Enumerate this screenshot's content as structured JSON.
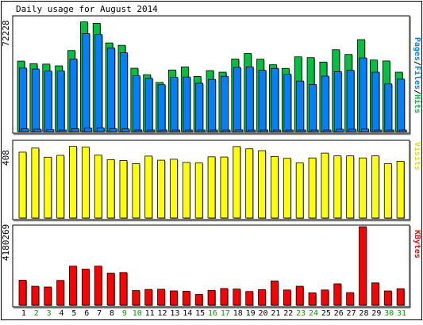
{
  "chart_data": [
    {
      "type": "bar",
      "title": "Daily usage for August 2014",
      "ylabel_max": "72228",
      "side_label_parts": [
        {
          "text": "Pages",
          "color": "#0080ff"
        },
        {
          "text": "/",
          "color": "#000000"
        },
        {
          "text": "Files",
          "color": "#0080ff"
        },
        {
          "text": "/",
          "color": "#000000"
        },
        {
          "text": "Hits",
          "color": "#00c040"
        }
      ],
      "categories": [
        "1",
        "2",
        "3",
        "4",
        "5",
        "6",
        "7",
        "8",
        "9",
        "10",
        "11",
        "12",
        "13",
        "14",
        "15",
        "16",
        "17",
        "18",
        "19",
        "20",
        "21",
        "22",
        "23",
        "24",
        "25",
        "26",
        "27",
        "28",
        "29",
        "30",
        "31"
      ],
      "ylim": [
        0,
        72228
      ],
      "series": [
        {
          "name": "Hits",
          "color": "#00c040",
          "values": [
            44600,
            43000,
            42700,
            41600,
            51300,
            69400,
            68500,
            56100,
            54600,
            40100,
            36000,
            31100,
            39000,
            40900,
            34900,
            38600,
            37600,
            45900,
            49400,
            45800,
            42300,
            40000,
            47300,
            46800,
            44000,
            51800,
            48800,
            58200,
            45300,
            44700,
            37600
          ]
        },
        {
          "name": "Files",
          "color": "#0080ff",
          "values": [
            40200,
            39600,
            38300,
            38400,
            45900,
            62000,
            61400,
            52800,
            49900,
            35300,
            33700,
            29700,
            34300,
            34500,
            30600,
            33000,
            35000,
            40600,
            40900,
            38800,
            40000,
            36300,
            32000,
            29800,
            35100,
            37900,
            38800,
            46600,
            37600,
            30200,
            33200
          ]
        },
        {
          "name": "Pages",
          "color": "#0080ff",
          "values": [
            1700,
            1500,
            1200,
            1000,
            1800,
            2300,
            2400,
            1900,
            1700,
            1000,
            800,
            700,
            900,
            800,
            700,
            800,
            900,
            1100,
            1000,
            1000,
            900,
            800,
            700,
            800,
            900,
            1500,
            1500,
            1600,
            900,
            800,
            800
          ]
        }
      ]
    },
    {
      "type": "bar",
      "ylabel_max": "408",
      "side_label": "Visits",
      "side_label_color": "#e0e000",
      "categories": [
        "1",
        "2",
        "3",
        "4",
        "5",
        "6",
        "7",
        "8",
        "9",
        "10",
        "11",
        "12",
        "13",
        "14",
        "15",
        "16",
        "17",
        "18",
        "19",
        "20",
        "21",
        "22",
        "23",
        "24",
        "25",
        "26",
        "27",
        "28",
        "29",
        "30",
        "31"
      ],
      "ylim": [
        0,
        408
      ],
      "series": [
        {
          "name": "Visits",
          "color": "#ffff00",
          "values": [
            353,
            375,
            326,
            336,
            384,
            380,
            337,
            313,
            308,
            291,
            332,
            310,
            315,
            298,
            295,
            328,
            327,
            383,
            371,
            361,
            330,
            320,
            295,
            322,
            348,
            333,
            333,
            322,
            333,
            291,
            304
          ]
        }
      ]
    },
    {
      "type": "bar",
      "ylabel_max": "4180269",
      "side_label": "KBytes",
      "side_label_color": "#ff0000",
      "categories": [
        "1",
        "2",
        "3",
        "4",
        "5",
        "6",
        "7",
        "8",
        "9",
        "10",
        "11",
        "12",
        "13",
        "14",
        "15",
        "16",
        "17",
        "18",
        "19",
        "20",
        "21",
        "22",
        "23",
        "24",
        "25",
        "26",
        "27",
        "28",
        "29",
        "30",
        "31"
      ],
      "category_colors": [
        "#000000",
        "#00a000",
        "#00a000",
        "#000000",
        "#000000",
        "#000000",
        "#000000",
        "#000000",
        "#00a000",
        "#00a000",
        "#000000",
        "#000000",
        "#000000",
        "#000000",
        "#000000",
        "#00a000",
        "#00a000",
        "#000000",
        "#000000",
        "#000000",
        "#000000",
        "#000000",
        "#00a000",
        "#00a000",
        "#000000",
        "#000000",
        "#000000",
        "#000000",
        "#000000",
        "#00a000",
        "#00a000"
      ],
      "ylim": [
        0,
        4180269
      ],
      "series": [
        {
          "name": "KBytes",
          "color": "#ff0000",
          "values": [
            1330000,
            1010000,
            970000,
            1320000,
            2080000,
            1920000,
            2080000,
            1710000,
            1740000,
            780000,
            840000,
            850000,
            760000,
            740000,
            570000,
            790000,
            890000,
            860000,
            730000,
            830000,
            1290000,
            810000,
            1010000,
            660000,
            810000,
            1140000,
            670000,
            4180269,
            1190000,
            760000,
            880000
          ]
        }
      ]
    }
  ]
}
